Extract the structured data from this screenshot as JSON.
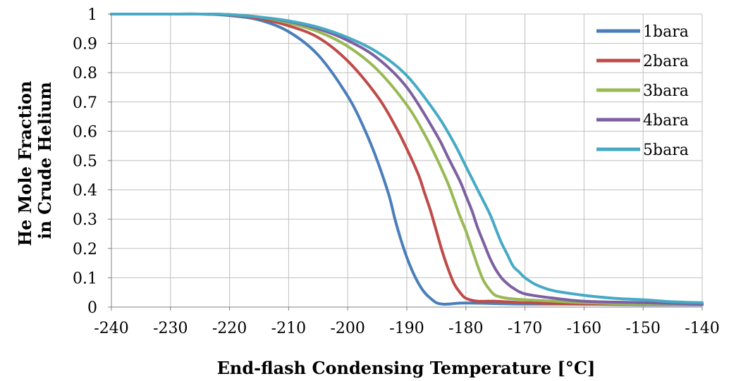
{
  "chart_data": {
    "type": "line",
    "title": "",
    "xlabel": "End-flash Condensing Temperature [°C]",
    "ylabel": [
      "He Mole Fraction",
      "in Crude Helium"
    ],
    "xlim": [
      -240,
      -140
    ],
    "ylim": [
      0,
      1
    ],
    "xticks": [
      -240,
      -230,
      -220,
      -210,
      -200,
      -190,
      -180,
      -170,
      -160,
      -150,
      -140
    ],
    "xtick_labels": [
      "-240",
      "-230",
      "-220",
      "-210",
      "-200",
      "-190",
      "-180",
      "-170",
      "-160",
      "-150",
      "-140"
    ],
    "yticks": [
      0,
      0.1,
      0.2,
      0.3,
      0.4,
      0.5,
      0.6,
      0.7,
      0.8,
      0.9,
      1
    ],
    "ytick_labels": [
      "0",
      "0.1",
      "0.2",
      "0.3",
      "0.4",
      "0.5",
      "0.6",
      "0.7",
      "0.8",
      "0.9",
      "1"
    ],
    "grid": true,
    "legend_position": "top-right",
    "series": [
      {
        "name": "1bara",
        "color": "#4a7ebb",
        "x": [
          -240,
          -230,
          -225,
          -220,
          -215,
          -210,
          -205,
          -200,
          -197,
          -195,
          -193,
          -192,
          -191,
          -190,
          -189,
          -188,
          -187,
          -186,
          -185,
          -184,
          -183,
          -182,
          -180,
          -175,
          -170,
          -160,
          -150,
          -140
        ],
        "y": [
          1,
          1,
          1,
          0.995,
          0.98,
          0.94,
          0.86,
          0.72,
          0.6,
          0.5,
          0.38,
          0.3,
          0.23,
          0.17,
          0.12,
          0.08,
          0.05,
          0.03,
          0.015,
          0.01,
          0.01,
          0.012,
          0.014,
          0.012,
          0.01,
          0.01,
          0.008,
          0.008
        ]
      },
      {
        "name": "2bara",
        "color": "#be4b48",
        "x": [
          -240,
          -230,
          -225,
          -220,
          -215,
          -210,
          -205,
          -200,
          -195,
          -192,
          -190,
          -188,
          -187,
          -186,
          -185,
          -184,
          -183,
          -182,
          -181,
          -180,
          -178,
          -175,
          -170,
          -160,
          -150,
          -140
        ],
        "y": [
          1,
          1,
          1,
          0.997,
          0.985,
          0.96,
          0.92,
          0.84,
          0.72,
          0.62,
          0.54,
          0.45,
          0.39,
          0.33,
          0.26,
          0.19,
          0.13,
          0.08,
          0.05,
          0.03,
          0.02,
          0.02,
          0.015,
          0.01,
          0.01,
          0.01
        ]
      },
      {
        "name": "3bara",
        "color": "#98b954",
        "x": [
          -240,
          -230,
          -225,
          -220,
          -215,
          -210,
          -205,
          -200,
          -195,
          -190,
          -187,
          -185,
          -183,
          -181,
          -180,
          -179,
          -178,
          -177,
          -176,
          -175,
          -173,
          -170,
          -165,
          -160,
          -150,
          -140
        ],
        "y": [
          1,
          1,
          1,
          0.998,
          0.99,
          0.97,
          0.94,
          0.89,
          0.81,
          0.69,
          0.59,
          0.51,
          0.42,
          0.31,
          0.26,
          0.2,
          0.14,
          0.09,
          0.06,
          0.04,
          0.03,
          0.025,
          0.02,
          0.015,
          0.01,
          0.01
        ]
      },
      {
        "name": "4bara",
        "color": "#7d60a0",
        "x": [
          -240,
          -230,
          -225,
          -220,
          -215,
          -210,
          -205,
          -200,
          -195,
          -190,
          -185,
          -183,
          -181,
          -180,
          -179,
          -178,
          -177,
          -176,
          -175,
          -174,
          -173,
          -172,
          -170,
          -165,
          -160,
          -150,
          -140
        ],
        "y": [
          1,
          1,
          1,
          0.998,
          0.99,
          0.975,
          0.95,
          0.91,
          0.85,
          0.75,
          0.59,
          0.51,
          0.43,
          0.38,
          0.33,
          0.27,
          0.22,
          0.17,
          0.13,
          0.1,
          0.08,
          0.065,
          0.045,
          0.03,
          0.02,
          0.015,
          0.01
        ]
      },
      {
        "name": "5bara",
        "color": "#46aac5",
        "x": [
          -240,
          -230,
          -225,
          -220,
          -215,
          -210,
          -205,
          -200,
          -195,
          -190,
          -185,
          -182,
          -180,
          -178,
          -176,
          -175,
          -174,
          -173,
          -172,
          -171,
          -170,
          -168,
          -165,
          -160,
          -155,
          -150,
          -145,
          -140
        ],
        "y": [
          1,
          1,
          1,
          0.998,
          0.99,
          0.977,
          0.955,
          0.92,
          0.87,
          0.79,
          0.66,
          0.56,
          0.48,
          0.4,
          0.32,
          0.27,
          0.22,
          0.18,
          0.14,
          0.12,
          0.1,
          0.075,
          0.055,
          0.04,
          0.03,
          0.025,
          0.018,
          0.015
        ]
      }
    ]
  }
}
